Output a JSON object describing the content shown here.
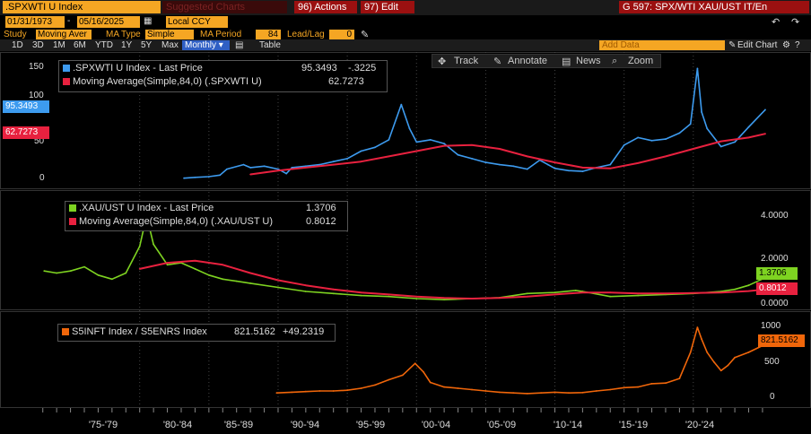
{
  "toolbar": {
    "ticker": ".SPXWTI U Index",
    "suggested": "Suggested Charts",
    "actions": "96) Actions",
    "edit": "97) Edit",
    "title": "G 597: SPX/WTI XAU/UST IT/En"
  },
  "dates": {
    "start": "01/31/1973",
    "end": "05/16/2025",
    "currency": "Local CCY"
  },
  "study": {
    "study_label": "Study",
    "study_value": "Moving Aver",
    "ma_type_label": "MA Type",
    "ma_type_value": "Simple",
    "ma_period_label": "MA Period",
    "ma_period_value": "84",
    "lead_lag_label": "Lead/Lag",
    "lead_lag_value": "0"
  },
  "periods": [
    "1D",
    "3D",
    "1M",
    "6M",
    "YTD",
    "1Y",
    "5Y",
    "Max"
  ],
  "frequency": "Monthly ▾",
  "table_label": "Table",
  "add_data": "Add Data",
  "edit_chart": "Edit Chart",
  "tools": {
    "track": "Track",
    "annotate": "Annotate",
    "news": "News",
    "zoom": "Zoom"
  },
  "colors": {
    "blue": "#3d9bef",
    "red": "#e8213f",
    "green": "#7ed321",
    "orange": "#f0660a",
    "amber": "#f5a623"
  },
  "chart_data": [
    {
      "type": "line",
      "panel": "top",
      "ylim": [
        0,
        160
      ],
      "yticks": [
        0,
        50,
        100,
        150
      ],
      "series": [
        {
          "name": ".SPXWTI U Index - Last Price",
          "value_label": "95.3493",
          "change_label": "-.3225",
          "x": [
            1983.2,
            1984,
            1985,
            1985.8,
            1986.3,
            1987.5,
            1988,
            1989,
            1990,
            1990.6,
            1991,
            1992,
            1993,
            1994,
            1995,
            1996,
            1997,
            1998,
            1998.9,
            1999.5,
            2000,
            2001,
            2002,
            2003,
            2004,
            2005,
            2006,
            2007,
            2008,
            2008.9,
            2009.5,
            2010,
            2011,
            2012,
            2013,
            2014,
            2015,
            2016,
            2017,
            2018,
            2019,
            2019.8,
            2020.3,
            2020.6,
            2021,
            2022,
            2023,
            2024,
            2025.2
          ],
          "values": [
            4,
            5,
            6,
            8,
            16,
            22,
            18,
            20,
            16,
            10,
            18,
            20,
            22,
            26,
            30,
            40,
            45,
            55,
            102,
            70,
            52,
            55,
            50,
            35,
            30,
            25,
            22,
            20,
            16,
            28,
            22,
            17,
            14,
            13,
            18,
            22,
            48,
            58,
            54,
            56,
            64,
            76,
            150,
            92,
            70,
            46,
            52,
            72,
            95
          ]
        },
        {
          "name": "Moving Average(Simple,84,0) (.SPXWTI U)",
          "value_label": "62.7273",
          "x": [
            1988,
            1990,
            1992,
            1994,
            1996,
            1998,
            2000,
            2002,
            2004,
            2006,
            2008,
            2010,
            2012,
            2014,
            2016,
            2018,
            2020,
            2022,
            2024,
            2025.2
          ],
          "values": [
            9,
            14,
            18,
            22,
            26,
            33,
            40,
            47,
            48,
            43,
            33,
            25,
            18,
            17,
            24,
            33,
            43,
            53,
            58,
            63
          ]
        }
      ],
      "price_tags": [
        "95.3493",
        "62.7273"
      ]
    },
    {
      "type": "line",
      "panel": "middle",
      "ylim": [
        0,
        4.6
      ],
      "yticks": [
        "0.0000",
        "2.0000",
        "4.0000"
      ],
      "series": [
        {
          "name": ".XAU/UST U Index - Last Price",
          "value_label": "1.3706",
          "x": [
            1973.1,
            1974,
            1975,
            1976,
            1977,
            1978,
            1979,
            1980,
            1980.5,
            1981,
            1982,
            1983,
            1984,
            1985,
            1986,
            1987,
            1988,
            1990,
            1992,
            1994,
            1996,
            1998,
            2000,
            2002,
            2004,
            2006,
            2008,
            2010,
            2011.5,
            2012,
            2014,
            2016,
            2018,
            2020,
            2022,
            2023,
            2024,
            2025.2
          ],
          "values": [
            1.7,
            1.6,
            1.7,
            1.9,
            1.5,
            1.3,
            1.6,
            2.9,
            4.4,
            3.0,
            2.0,
            2.1,
            1.8,
            1.5,
            1.3,
            1.2,
            1.1,
            0.9,
            0.7,
            0.6,
            0.5,
            0.45,
            0.35,
            0.3,
            0.35,
            0.4,
            0.6,
            0.65,
            0.75,
            0.7,
            0.45,
            0.5,
            0.55,
            0.6,
            0.7,
            0.8,
            1.0,
            1.37
          ]
        },
        {
          "name": "Moving Average(Simple,84,0) (.XAU/UST U)",
          "value_label": "0.8012",
          "x": [
            1980,
            1982,
            1984,
            1986,
            1988,
            1990,
            1992,
            1994,
            1996,
            1998,
            2000,
            2002,
            2004,
            2006,
            2008,
            2010,
            2012,
            2014,
            2016,
            2018,
            2020,
            2022,
            2024,
            2025.2
          ],
          "values": [
            1.8,
            2.1,
            2.2,
            2.0,
            1.6,
            1.25,
            1.0,
            0.8,
            0.65,
            0.55,
            0.45,
            0.38,
            0.35,
            0.38,
            0.45,
            0.55,
            0.65,
            0.65,
            0.6,
            0.6,
            0.62,
            0.65,
            0.72,
            0.8
          ]
        }
      ],
      "price_tags": [
        "1.3706",
        "0.8012"
      ]
    },
    {
      "type": "line",
      "panel": "bottom",
      "ylim": [
        0,
        1150
      ],
      "yticks": [
        0,
        500,
        1000
      ],
      "series": [
        {
          "name": "S5INFT Index / S5ENRS Index",
          "value_label": "821.5162",
          "change_label": "+49.2319",
          "x": [
            1989.9,
            1991,
            1992,
            1993,
            1994,
            1995,
            1996,
            1997,
            1998,
            1999,
            1999.9,
            2000.5,
            2001,
            2002,
            2003,
            2004,
            2005,
            2006,
            2007,
            2008,
            2009,
            2010,
            2011,
            2012,
            2013,
            2014,
            2015,
            2016,
            2017,
            2018,
            2019,
            2019.8,
            2020.3,
            2020.6,
            2021,
            2021.5,
            2022,
            2022.5,
            2023,
            2024,
            2025.2
          ],
          "values": [
            80,
            90,
            100,
            110,
            110,
            120,
            150,
            200,
            280,
            350,
            530,
            400,
            240,
            170,
            150,
            130,
            110,
            90,
            80,
            70,
            80,
            90,
            80,
            85,
            110,
            130,
            160,
            170,
            220,
            230,
            300,
            700,
            1080,
            900,
            700,
            550,
            420,
            500,
            620,
            700,
            821
          ]
        }
      ],
      "price_tags": [
        "821.5162"
      ]
    }
  ],
  "x_axis": {
    "range": [
      1972.5,
      2026.3
    ],
    "ticks": [
      {
        "label": "'75-'79",
        "center": 1977
      },
      {
        "label": "'80-'84",
        "center": 1982
      },
      {
        "label": "'85-'89",
        "center": 1987
      },
      {
        "label": "'90-'94",
        "center": 1992
      },
      {
        "label": "'95-'99",
        "center": 1997
      },
      {
        "label": "'00-'04",
        "center": 2002
      },
      {
        "label": "'05-'09",
        "center": 2007
      },
      {
        "label": "'10-'14",
        "center": 2012
      },
      {
        "label": "'15-'19",
        "center": 2017
      },
      {
        "label": "'20-'24",
        "center": 2022
      }
    ]
  }
}
